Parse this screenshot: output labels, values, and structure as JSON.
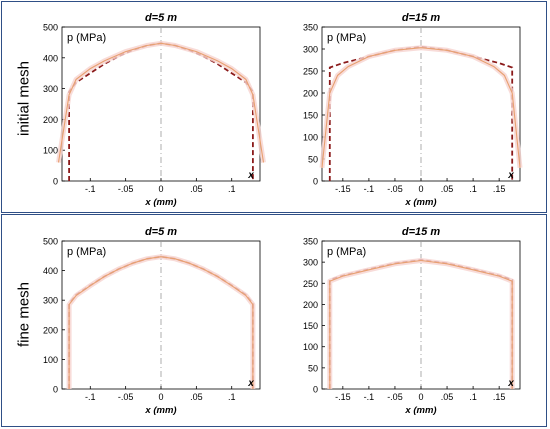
{
  "row_labels": [
    "initial mesh",
    "fine mesh"
  ],
  "chart_data": [
    {
      "type": "line",
      "title": "d=5 m",
      "row": "initial mesh",
      "xlabel": "x (mm)",
      "ylabel": "p (MPa)",
      "x_end_label": "x",
      "xlim": [
        -0.14,
        0.14
      ],
      "ylim": [
        0,
        500
      ],
      "xticks": [
        -0.1,
        -0.05,
        0,
        0.05,
        0.1
      ],
      "yticks": [
        0,
        100,
        200,
        300,
        400,
        500
      ],
      "series": [
        {
          "style": "dashed",
          "color": "#8b1a1a",
          "x": [
            -0.13,
            -0.13,
            -0.12,
            -0.1,
            -0.08,
            -0.06,
            -0.04,
            -0.02,
            0,
            0.02,
            0.04,
            0.06,
            0.08,
            0.1,
            0.12,
            0.13,
            0.13
          ],
          "y": [
            0,
            290,
            320,
            350,
            380,
            405,
            425,
            440,
            447,
            440,
            425,
            405,
            380,
            350,
            320,
            290,
            0
          ]
        },
        {
          "style": "solid",
          "color": "#e8a070",
          "x": [
            -0.145,
            -0.13,
            -0.12,
            -0.1,
            -0.08,
            -0.05,
            -0.02,
            0,
            0.02,
            0.05,
            0.08,
            0.1,
            0.12,
            0.13,
            0.145
          ],
          "y": [
            60,
            280,
            330,
            365,
            390,
            420,
            440,
            447,
            440,
            420,
            390,
            365,
            330,
            280,
            60
          ]
        }
      ]
    },
    {
      "type": "line",
      "title": "d=15 m",
      "row": "initial mesh",
      "xlabel": "x (mm)",
      "ylabel": "p (MPa)",
      "x_end_label": "x",
      "xlim": [
        -0.19,
        0.19
      ],
      "ylim": [
        0,
        350
      ],
      "xticks": [
        -0.15,
        -0.1,
        -0.05,
        0,
        0.05,
        0.1,
        0.15
      ],
      "yticks": [
        0,
        50,
        100,
        150,
        200,
        250,
        300,
        350
      ],
      "series": [
        {
          "style": "dashed",
          "color": "#8b1a1a",
          "x": [
            -0.175,
            -0.175,
            -0.15,
            -0.1,
            -0.05,
            0,
            0.05,
            0.1,
            0.15,
            0.175,
            0.175
          ],
          "y": [
            0,
            258,
            268,
            283,
            297,
            305,
            297,
            283,
            268,
            258,
            0
          ]
        },
        {
          "style": "solid",
          "color": "#e8a070",
          "x": [
            -0.19,
            -0.175,
            -0.16,
            -0.14,
            -0.1,
            -0.05,
            0,
            0.05,
            0.1,
            0.14,
            0.16,
            0.175,
            0.19
          ],
          "y": [
            30,
            200,
            240,
            260,
            283,
            297,
            303,
            297,
            283,
            260,
            240,
            200,
            30
          ]
        }
      ]
    },
    {
      "type": "line",
      "title": "d=5 m",
      "row": "fine mesh",
      "xlabel": "x (mm)",
      "ylabel": "p (MPa)",
      "x_end_label": "x",
      "xlim": [
        -0.14,
        0.14
      ],
      "ylim": [
        0,
        500
      ],
      "xticks": [
        -0.1,
        -0.05,
        0,
        0.05,
        0.1
      ],
      "yticks": [
        0,
        100,
        200,
        300,
        400,
        500
      ],
      "series": [
        {
          "style": "dashed",
          "color": "#8b1a1a",
          "x": [
            -0.13,
            -0.13,
            -0.12,
            -0.1,
            -0.08,
            -0.06,
            -0.04,
            -0.02,
            0,
            0.02,
            0.04,
            0.06,
            0.08,
            0.1,
            0.12,
            0.13,
            0.13
          ],
          "y": [
            0,
            288,
            318,
            350,
            380,
            405,
            425,
            440,
            447,
            440,
            425,
            405,
            380,
            350,
            318,
            288,
            0
          ]
        },
        {
          "style": "solid",
          "color": "#e8a070",
          "x": [
            -0.13,
            -0.13,
            -0.12,
            -0.1,
            -0.08,
            -0.06,
            -0.04,
            -0.02,
            0,
            0.02,
            0.04,
            0.06,
            0.08,
            0.1,
            0.12,
            0.13,
            0.13
          ],
          "y": [
            0,
            285,
            316,
            349,
            380,
            405,
            425,
            440,
            447,
            440,
            425,
            405,
            380,
            349,
            316,
            285,
            0
          ]
        }
      ]
    },
    {
      "type": "line",
      "title": "d=15 m",
      "row": "fine mesh",
      "xlabel": "x (mm)",
      "ylabel": "p (MPa)",
      "x_end_label": "x",
      "xlim": [
        -0.19,
        0.19
      ],
      "ylim": [
        0,
        350
      ],
      "xticks": [
        -0.15,
        -0.1,
        -0.05,
        0,
        0.05,
        0.1,
        0.15
      ],
      "yticks": [
        0,
        50,
        100,
        150,
        200,
        250,
        300,
        350
      ],
      "series": [
        {
          "style": "dashed",
          "color": "#8b1a1a",
          "x": [
            -0.175,
            -0.175,
            -0.15,
            -0.1,
            -0.05,
            0,
            0.05,
            0.1,
            0.15,
            0.175,
            0.175
          ],
          "y": [
            0,
            258,
            268,
            283,
            297,
            305,
            297,
            283,
            268,
            258,
            0
          ]
        },
        {
          "style": "solid",
          "color": "#e8a070",
          "x": [
            -0.175,
            -0.175,
            -0.15,
            -0.1,
            -0.05,
            0,
            0.05,
            0.1,
            0.15,
            0.175,
            0.175
          ],
          "y": [
            0,
            255,
            267,
            282,
            296,
            304,
            296,
            282,
            267,
            255,
            0
          ]
        }
      ]
    }
  ]
}
